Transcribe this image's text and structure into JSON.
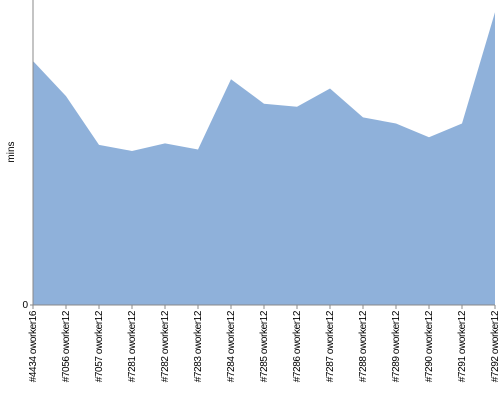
{
  "chart_data": {
    "type": "area",
    "y_label": "mins",
    "categories": [
      "#4434 oworker16",
      "#7056 oworker12",
      "#7057 oworker12",
      "#7281 oworker12",
      "#7282 oworker12",
      "#7283 oworker12",
      "#7284 oworker12",
      "#7285 oworker12",
      "#7286 oworker12",
      "#7287 oworker12",
      "#7288 oworker12",
      "#7289 oworker12",
      "#7290 oworker12",
      "#7291 oworker12",
      "#7292 oworker12"
    ],
    "values": [
      80,
      68.5,
      52.5,
      50.5,
      53,
      51,
      74,
      66,
      65,
      71,
      61.5,
      59.5,
      55,
      59.5,
      96
    ],
    "color": "#8fb1da",
    "ylim": [
      0,
      100
    ],
    "yticks": [
      0
    ]
  }
}
